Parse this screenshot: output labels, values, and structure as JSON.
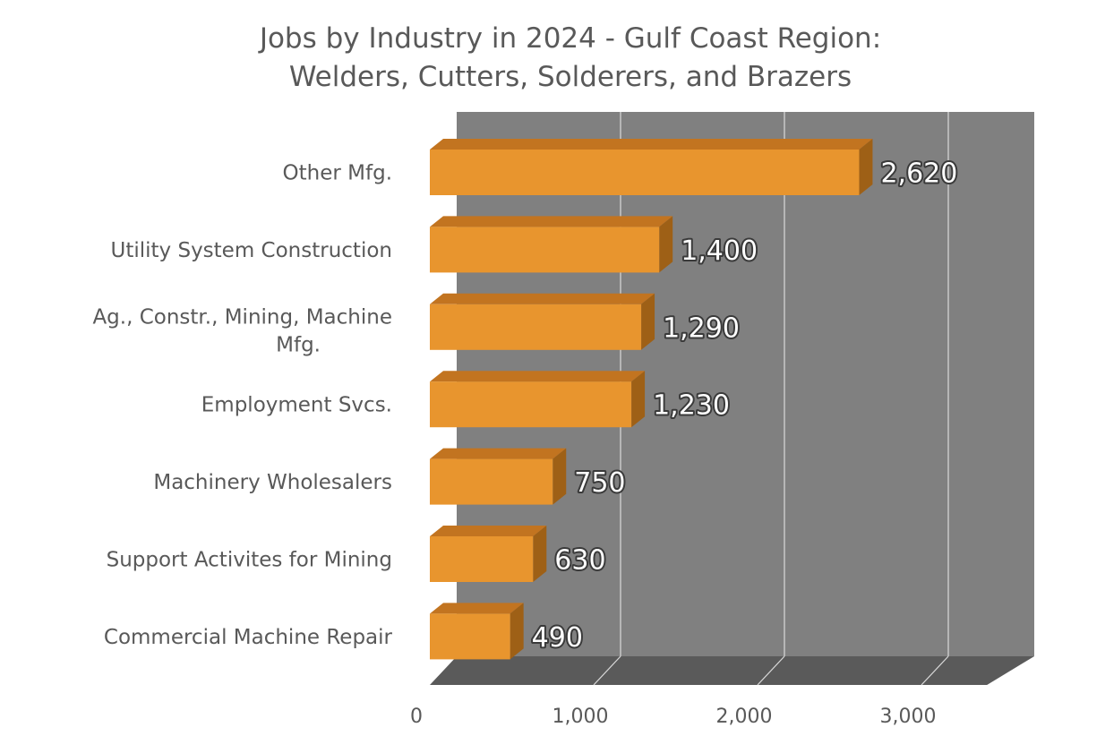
{
  "chart_data": {
    "type": "bar",
    "orientation": "horizontal",
    "style": "3d",
    "title": "Jobs by Industry in 2024 - Gulf Coast Region:",
    "subtitle": "Welders, Cutters, Solderers, and Brazers",
    "categories": [
      "Other Mfg.",
      "Utility System Construction",
      "Ag., Constr., Mining, Machine Mfg.",
      "Employment Svcs.",
      "Machinery Wholesalers",
      "Support Activites for Mining",
      "Commercial Machine Repair"
    ],
    "values": [
      2620,
      1400,
      1290,
      1230,
      750,
      630,
      490
    ],
    "data_labels": [
      "2,620",
      "1,400",
      "1,290",
      "1,230",
      "750",
      "630",
      "490"
    ],
    "xlim": [
      0,
      3400
    ],
    "x_ticks": [
      0,
      1000,
      2000,
      3000
    ],
    "x_tick_labels": [
      "0",
      "1,000",
      "2,000",
      "3,000"
    ],
    "xlabel": "",
    "ylabel": "",
    "grid": true,
    "legend": "none",
    "colors": {
      "bar_front": "#E8952E",
      "bar_top": "#C27420",
      "bar_side": "#9E6016",
      "back_wall": "#808080",
      "floor": "#5A5A5A",
      "gridline": "#D9D9D9",
      "text": "#595959",
      "data_label_fill": "#FFFFFF",
      "data_label_outline": "#3A3A3A"
    }
  }
}
